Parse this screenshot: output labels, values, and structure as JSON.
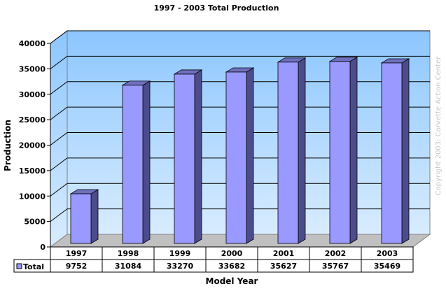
{
  "chart_data": {
    "type": "bar",
    "title": "1997 - 2003 Total Production",
    "xlabel": "Model Year",
    "ylabel": "Production",
    "categories": [
      "1997",
      "1998",
      "1999",
      "2000",
      "2001",
      "2002",
      "2003"
    ],
    "series": [
      {
        "name": "Total",
        "values": [
          9752,
          31084,
          33270,
          33682,
          35627,
          35767,
          35469
        ],
        "color": "#9999ff"
      }
    ],
    "ylim": [
      0,
      40000
    ],
    "yticks": [
      0,
      5000,
      10000,
      15000,
      20000,
      25000,
      30000,
      35000,
      40000
    ],
    "grid": true,
    "legend": "data-table-left",
    "watermark": "Copyright 2003: Corvette Action Center"
  }
}
